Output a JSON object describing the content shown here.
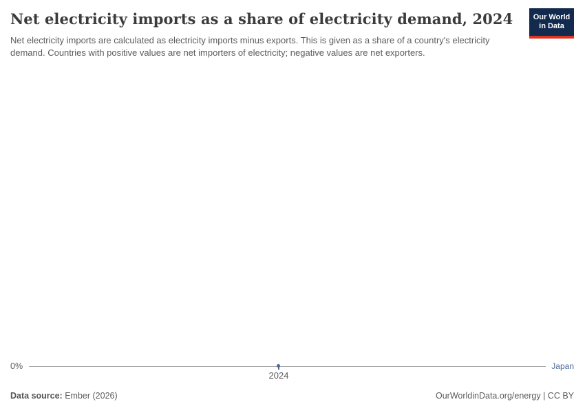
{
  "header": {
    "title": "Net electricity imports as a share of electricity demand, 2024",
    "subtitle": "Net electricity imports are calculated as electricity imports minus exports. This is given as a share of a country's electricity demand. Countries with positive values are net importers of electricity; negative values are net exporters."
  },
  "logo": {
    "line1": "Our World",
    "line2": "in Data",
    "bg_color": "#112a4e",
    "stripe_color": "#e0311e"
  },
  "chart_data": {
    "type": "line",
    "title": "Net electricity imports as a share of electricity demand, 2024",
    "x": [
      2024
    ],
    "series": [
      {
        "name": "Japan",
        "values": [
          0
        ],
        "color": "#4c6a9c"
      }
    ],
    "xlabel": "",
    "ylabel": "",
    "x_tick_labels": [
      "2024"
    ],
    "y_tick_labels": [
      "0%"
    ],
    "grid": false,
    "legend_position": "right-of-line",
    "axis_line_color": "#a5a5a5"
  },
  "axis": {
    "zero_label": "0%",
    "year_label": "2024",
    "entity_label": "Japan"
  },
  "footer": {
    "source_label": "Data source:",
    "source_value": " Ember (2026)",
    "license": "OurWorldinData.org/energy | CC BY"
  }
}
